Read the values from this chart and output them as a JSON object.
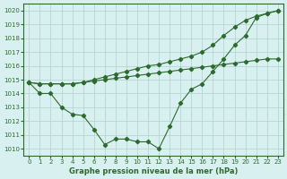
{
  "xlabel": "Graphe pression niveau de la mer (hPa)",
  "ylim": [
    1009.5,
    1020.5
  ],
  "xlim": [
    -0.5,
    23.5
  ],
  "yticks": [
    1010,
    1011,
    1012,
    1013,
    1014,
    1015,
    1016,
    1017,
    1018,
    1019,
    1020
  ],
  "xticks": [
    0,
    1,
    2,
    3,
    4,
    5,
    6,
    7,
    8,
    9,
    10,
    11,
    12,
    13,
    14,
    15,
    16,
    17,
    18,
    19,
    20,
    21,
    22,
    23
  ],
  "bg_color": "#d8f0f0",
  "line_color": "#2d6a2d",
  "grid_color": "#b0d0d0",
  "line1": [
    1014.8,
    1014.0,
    1014.0,
    1013.0,
    1012.5,
    1012.4,
    1011.4,
    1010.3,
    1010.7,
    1010.7,
    1010.5,
    1010.5,
    1010.0,
    1011.6,
    1013.3,
    1014.3,
    1014.7,
    1015.6,
    1016.5,
    1017.5,
    1018.2,
    1019.5,
    1019.8,
    1020.0
  ],
  "line2": [
    1014.8,
    1014.7,
    1014.7,
    1014.7,
    1014.7,
    1014.8,
    1014.9,
    1015.0,
    1015.1,
    1015.2,
    1015.3,
    1015.4,
    1015.5,
    1015.6,
    1015.7,
    1015.8,
    1015.9,
    1016.0,
    1016.1,
    1016.2,
    1016.3,
    1016.4,
    1016.5,
    1016.5
  ],
  "line3": [
    1014.8,
    1014.7,
    1014.7,
    1014.7,
    1014.7,
    1014.8,
    1015.0,
    1015.2,
    1015.4,
    1015.6,
    1015.8,
    1016.0,
    1016.1,
    1016.3,
    1016.5,
    1016.7,
    1017.0,
    1017.5,
    1018.2,
    1018.8,
    1019.3,
    1019.6,
    1019.8,
    1020.0
  ]
}
